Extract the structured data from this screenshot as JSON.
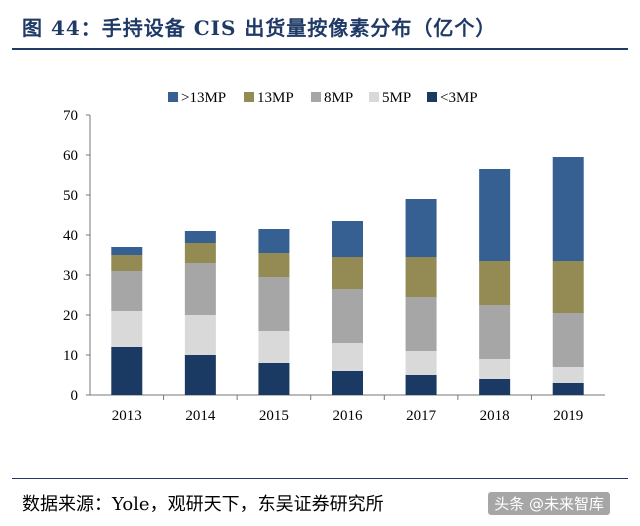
{
  "title": "图 44：手持设备 CIS 出货量按像素分布（亿个）",
  "source": "数据来源：Yole，观研天下，东吴证券研究所",
  "watermark": "头条 @未来智库",
  "chart_data": {
    "type": "bar",
    "stacked": true,
    "categories": [
      "2013",
      "2014",
      "2015",
      "2016",
      "2017",
      "2018",
      "2019"
    ],
    "ylim": [
      0,
      70
    ],
    "yticks": [
      0,
      10,
      20,
      30,
      40,
      50,
      60,
      70
    ],
    "legend_position": "top",
    "grid": false,
    "series": [
      {
        "name": "<3MP",
        "color": "#1b3a63",
        "values": [
          12,
          10,
          8,
          6,
          5,
          4,
          3
        ]
      },
      {
        "name": "5MP",
        "color": "#d9d9d9",
        "values": [
          9,
          10,
          8,
          7,
          6,
          5,
          4
        ]
      },
      {
        "name": "8MP",
        "color": "#a6a6a6",
        "values": [
          10,
          13,
          13.5,
          13.5,
          13.5,
          13.5,
          13.5
        ]
      },
      {
        "name": "13MP",
        "color": "#948a54",
        "values": [
          4,
          5,
          6,
          8,
          10,
          11,
          13
        ]
      },
      {
        "name": ">13MP",
        "color": "#376092",
        "values": [
          2,
          3,
          6,
          9,
          14.5,
          23,
          26
        ]
      }
    ]
  }
}
